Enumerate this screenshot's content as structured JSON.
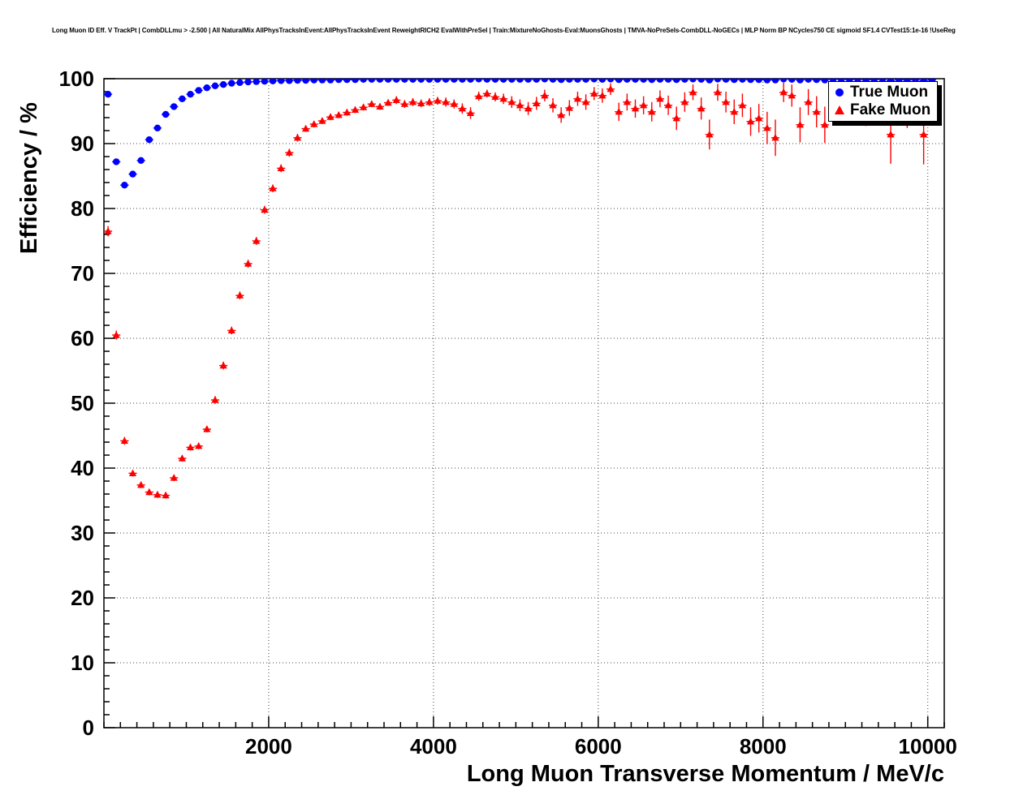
{
  "chart_data": {
    "type": "scatter",
    "title": "Long Muon ID Eff. V TrackPt | CombDLLmu > -2.500 | All NaturalMix AllPhysTracksInEvent:AllPhysTracksInEvent ReweightRICH2 EvalWithPreSel | Train:MixtureNoGhosts-Eval:MuonsGhosts | TMVA-NoPreSels-CombDLL-NoGECs | MLP Norm BP NCycles750 CE sigmoid SF1.4 CVTest15:1e-16 !UseReg",
    "xlabel": "Long Muon Transverse Momentum / MeV/c",
    "ylabel": "Efficiency / %",
    "xlim": [
      0,
      10200
    ],
    "ylim": [
      0,
      100
    ],
    "x_ticks": [
      2000,
      4000,
      6000,
      8000,
      10000
    ],
    "y_ticks": [
      0,
      10,
      20,
      30,
      40,
      50,
      60,
      70,
      80,
      90,
      100
    ],
    "x_minor_step": 200,
    "y_minor_step": 2,
    "grid": "dotted",
    "legend_position": "top-right",
    "series": [
      {
        "name": "True Muon",
        "marker": "circle",
        "color": "#0000ff",
        "x_bin_halfwidth": 50,
        "points": [
          [
            50,
            97.6
          ],
          [
            150,
            87.2
          ],
          [
            250,
            83.6
          ],
          [
            350,
            85.3
          ],
          [
            450,
            87.4
          ],
          [
            550,
            90.6
          ],
          [
            650,
            92.4
          ],
          [
            750,
            94.5
          ],
          [
            850,
            95.7
          ],
          [
            950,
            96.9
          ],
          [
            1050,
            97.6
          ],
          [
            1150,
            98.2
          ],
          [
            1250,
            98.6
          ],
          [
            1350,
            98.9
          ],
          [
            1450,
            99.1
          ],
          [
            1550,
            99.3
          ],
          [
            1650,
            99.4
          ],
          [
            1750,
            99.5
          ],
          [
            1850,
            99.55
          ],
          [
            1950,
            99.6
          ],
          [
            2050,
            99.65
          ],
          [
            2150,
            99.7
          ],
          [
            2250,
            99.7
          ],
          [
            2350,
            99.75
          ],
          [
            2450,
            99.75
          ],
          [
            2550,
            99.8
          ],
          [
            2650,
            99.8
          ],
          [
            2750,
            99.8
          ],
          [
            2850,
            99.85
          ],
          [
            2950,
            99.85
          ],
          [
            3050,
            99.85
          ],
          [
            3150,
            99.9
          ],
          [
            3250,
            99.9
          ],
          [
            3350,
            99.9
          ],
          [
            3450,
            99.9
          ],
          [
            3550,
            99.9
          ],
          [
            3650,
            99.9
          ],
          [
            3750,
            99.9
          ],
          [
            3850,
            99.9
          ],
          [
            3950,
            99.9
          ],
          [
            4050,
            99.9
          ],
          [
            4150,
            99.9
          ],
          [
            4250,
            99.9
          ],
          [
            4350,
            99.9
          ],
          [
            4450,
            99.9
          ],
          [
            4550,
            99.95
          ],
          [
            4650,
            99.9
          ],
          [
            4750,
            99.9
          ],
          [
            4850,
            99.9
          ],
          [
            4950,
            99.9
          ],
          [
            5050,
            99.9
          ],
          [
            5150,
            99.9
          ],
          [
            5250,
            99.9
          ],
          [
            5350,
            99.95
          ],
          [
            5450,
            99.9
          ],
          [
            5550,
            99.85
          ],
          [
            5650,
            99.9
          ],
          [
            5750,
            99.9
          ],
          [
            5850,
            99.9
          ],
          [
            5950,
            99.95
          ],
          [
            6050,
            99.9
          ],
          [
            6150,
            99.95
          ],
          [
            6250,
            99.85
          ],
          [
            6350,
            99.9
          ],
          [
            6450,
            99.9
          ],
          [
            6550,
            99.9
          ],
          [
            6650,
            99.85
          ],
          [
            6750,
            99.9
          ],
          [
            6850,
            99.9
          ],
          [
            6950,
            99.85
          ],
          [
            7050,
            99.9
          ],
          [
            7150,
            99.95
          ],
          [
            7250,
            99.9
          ],
          [
            7350,
            99.8
          ],
          [
            7450,
            99.95
          ],
          [
            7550,
            99.9
          ],
          [
            7650,
            99.85
          ],
          [
            7750,
            99.9
          ],
          [
            7850,
            99.85
          ],
          [
            7950,
            99.85
          ],
          [
            8050,
            99.8
          ],
          [
            8150,
            99.8
          ],
          [
            8250,
            99.95
          ],
          [
            8350,
            99.9
          ],
          [
            8450,
            99.8
          ],
          [
            8550,
            99.9
          ],
          [
            8650,
            99.85
          ],
          [
            8750,
            99.8
          ],
          [
            8850,
            99.9
          ],
          [
            8950,
            99.9
          ],
          [
            9050,
            99.85
          ],
          [
            9150,
            99.9
          ],
          [
            9250,
            99.8
          ],
          [
            9350,
            99.85
          ],
          [
            9450,
            99.9
          ],
          [
            9550,
            99.7
          ],
          [
            9650,
            99.85
          ],
          [
            9750,
            99.8
          ],
          [
            9850,
            99.85
          ],
          [
            9950,
            99.7
          ],
          [
            10050,
            99.8
          ]
        ]
      },
      {
        "name": "Fake Muon",
        "marker": "triangle",
        "color": "#ff0000",
        "x_bin_halfwidth": 50,
        "points": [
          [
            50,
            76.5,
            0.8
          ],
          [
            150,
            60.5,
            0.7
          ],
          [
            250,
            44.2,
            0.6
          ],
          [
            350,
            39.2,
            0.5
          ],
          [
            450,
            37.4,
            0.5
          ],
          [
            550,
            36.3,
            0.5
          ],
          [
            650,
            35.9,
            0.5
          ],
          [
            750,
            35.8,
            0.5
          ],
          [
            850,
            38.5,
            0.5
          ],
          [
            950,
            41.5,
            0.5
          ],
          [
            1050,
            43.2,
            0.5
          ],
          [
            1150,
            43.4,
            0.5
          ],
          [
            1250,
            46.0,
            0.5
          ],
          [
            1350,
            50.5,
            0.6
          ],
          [
            1450,
            55.8,
            0.6
          ],
          [
            1550,
            61.2,
            0.6
          ],
          [
            1650,
            66.6,
            0.6
          ],
          [
            1750,
            71.5,
            0.6
          ],
          [
            1850,
            75.0,
            0.6
          ],
          [
            1950,
            79.8,
            0.6
          ],
          [
            2050,
            83.1,
            0.6
          ],
          [
            2150,
            86.2,
            0.6
          ],
          [
            2250,
            88.6,
            0.6
          ],
          [
            2350,
            90.9,
            0.6
          ],
          [
            2450,
            92.3,
            0.5
          ],
          [
            2550,
            93.0,
            0.5
          ],
          [
            2650,
            93.5,
            0.5
          ],
          [
            2750,
            94.1,
            0.5
          ],
          [
            2850,
            94.4,
            0.5
          ],
          [
            2950,
            94.8,
            0.5
          ],
          [
            3050,
            95.2,
            0.5
          ],
          [
            3150,
            95.6,
            0.5
          ],
          [
            3250,
            96.1,
            0.5
          ],
          [
            3350,
            95.7,
            0.5
          ],
          [
            3450,
            96.3,
            0.5
          ],
          [
            3550,
            96.7,
            0.6
          ],
          [
            3650,
            96.1,
            0.6
          ],
          [
            3750,
            96.4,
            0.6
          ],
          [
            3850,
            96.2,
            0.6
          ],
          [
            3950,
            96.4,
            0.6
          ],
          [
            4050,
            96.6,
            0.6
          ],
          [
            4150,
            96.4,
            0.7
          ],
          [
            4250,
            96.1,
            0.7
          ],
          [
            4350,
            95.4,
            0.8
          ],
          [
            4450,
            94.7,
            0.9
          ],
          [
            4550,
            97.3,
            0.7
          ],
          [
            4650,
            97.7,
            0.6
          ],
          [
            4750,
            97.2,
            0.7
          ],
          [
            4850,
            96.9,
            0.8
          ],
          [
            4950,
            96.4,
            0.9
          ],
          [
            5050,
            95.9,
            0.9
          ],
          [
            5150,
            95.4,
            1.0
          ],
          [
            5250,
            96.2,
            1.0
          ],
          [
            5350,
            97.4,
            0.9
          ],
          [
            5450,
            95.9,
            1.1
          ],
          [
            5550,
            94.4,
            1.2
          ],
          [
            5650,
            95.5,
            1.2
          ],
          [
            5750,
            96.9,
            1.1
          ],
          [
            5850,
            96.4,
            1.2
          ],
          [
            5950,
            97.7,
            1.0
          ],
          [
            6050,
            97.4,
            1.1
          ],
          [
            6150,
            98.4,
            0.9
          ],
          [
            6250,
            94.9,
            1.4
          ],
          [
            6350,
            96.4,
            1.3
          ],
          [
            6450,
            95.4,
            1.4
          ],
          [
            6550,
            95.9,
            1.4
          ],
          [
            6650,
            94.9,
            1.5
          ],
          [
            6750,
            96.9,
            1.3
          ],
          [
            6850,
            95.9,
            1.5
          ],
          [
            6950,
            93.9,
            1.8
          ],
          [
            7050,
            96.4,
            1.5
          ],
          [
            7150,
            97.9,
            1.2
          ],
          [
            7250,
            95.4,
            1.7
          ],
          [
            7350,
            91.4,
            2.3
          ],
          [
            7450,
            97.9,
            1.3
          ],
          [
            7550,
            96.4,
            1.6
          ],
          [
            7650,
            94.9,
            1.9
          ],
          [
            7750,
            95.9,
            1.8
          ],
          [
            7850,
            93.4,
            2.2
          ],
          [
            7950,
            93.9,
            2.2
          ],
          [
            8050,
            92.4,
            2.5
          ],
          [
            8150,
            90.9,
            2.8
          ],
          [
            8250,
            97.9,
            1.5
          ],
          [
            8350,
            97.4,
            1.7
          ],
          [
            8450,
            92.9,
            2.7
          ],
          [
            8550,
            96.4,
            2.0
          ],
          [
            8650,
            94.9,
            2.4
          ],
          [
            8750,
            92.9,
            2.8
          ],
          [
            8850,
            96.9,
            2.0
          ],
          [
            8950,
            97.4,
            1.9
          ],
          [
            9050,
            96.4,
            2.3
          ],
          [
            9150,
            97.9,
            1.8
          ],
          [
            9250,
            95.4,
            2.7
          ],
          [
            9350,
            96.9,
            2.3
          ],
          [
            9450,
            97.4,
            2.2
          ],
          [
            9550,
            91.4,
            4.5
          ],
          [
            9650,
            96.9,
            2.5
          ],
          [
            9750,
            95.4,
            3.0
          ],
          [
            9850,
            97.4,
            2.3
          ],
          [
            9950,
            91.4,
            4.6
          ]
        ]
      }
    ]
  }
}
